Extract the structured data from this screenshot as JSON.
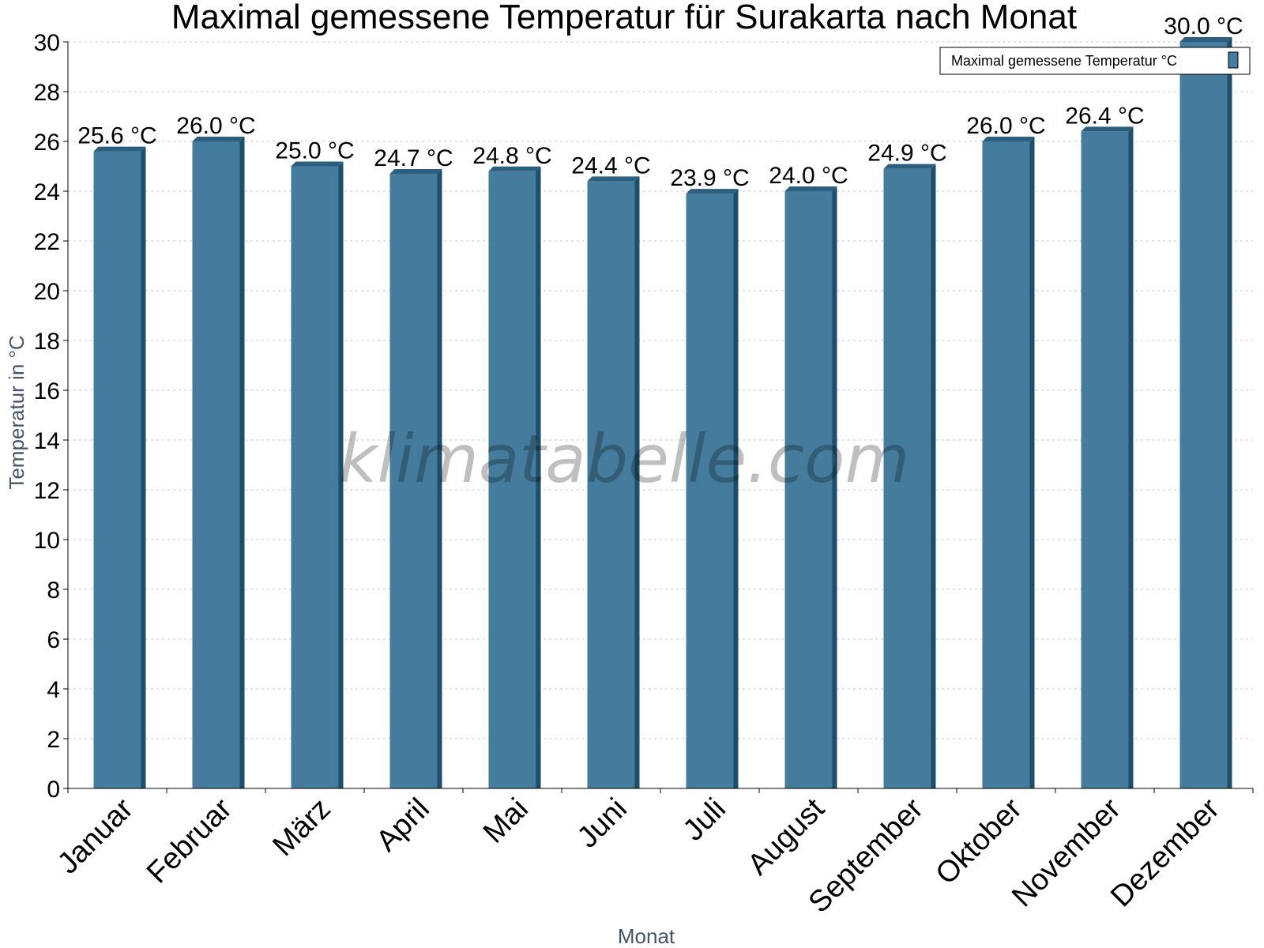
{
  "watermark": "klimatabelle.com",
  "colors": {
    "bar": "#457b9d",
    "bar_dark": "#1d4e6b",
    "bar_top": "#2c5f7f",
    "grid": "#c8c8c8",
    "axis": "#000000",
    "axis_label": "#44546a"
  },
  "chart_data": {
    "type": "bar",
    "title": "Maximal gemessene Temperatur für Surakarta nach Monat",
    "xlabel": "Monat",
    "ylabel": "Temperatur in °C",
    "ylim": [
      0,
      30
    ],
    "yticks": [
      0,
      2,
      4,
      6,
      8,
      10,
      12,
      14,
      16,
      18,
      20,
      22,
      24,
      26,
      28,
      30
    ],
    "grid": true,
    "legend_position": "top-right",
    "categories": [
      "Januar",
      "Februar",
      "März",
      "April",
      "Mai",
      "Juni",
      "Juli",
      "August",
      "September",
      "Oktober",
      "November",
      "Dezember"
    ],
    "series": [
      {
        "name": "Maximal gemessene Temperatur °C",
        "values": [
          25.6,
          26.0,
          25.0,
          24.7,
          24.8,
          24.4,
          23.9,
          24.0,
          24.9,
          26.0,
          26.4,
          30.0
        ],
        "labels": [
          "25.6 °C",
          "26.0 °C",
          "25.0 °C",
          "24.7 °C",
          "24.8 °C",
          "24.4 °C",
          "23.9 °C",
          "24.0 °C",
          "24.9 °C",
          "26.0 °C",
          "26.4 °C",
          "30.0 °C"
        ]
      }
    ]
  }
}
